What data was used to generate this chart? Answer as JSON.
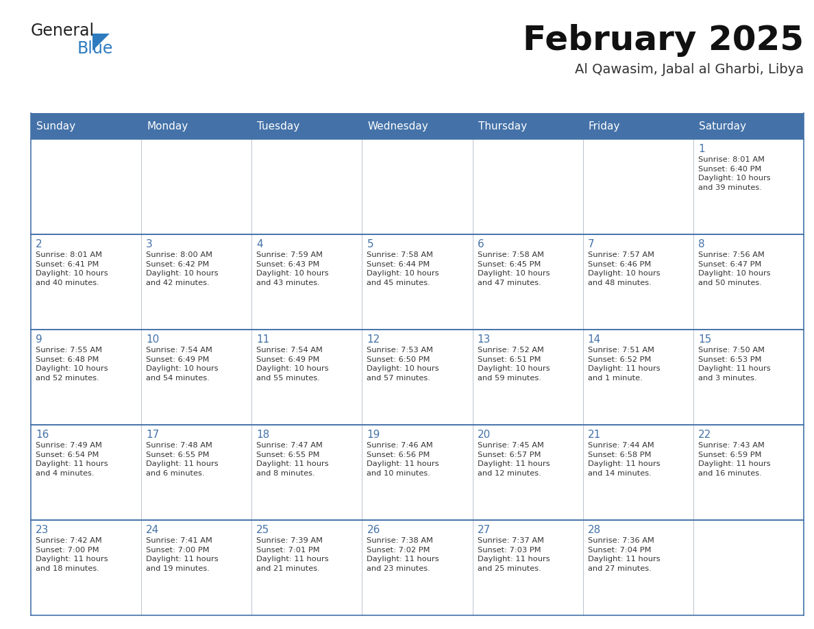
{
  "title": "February 2025",
  "subtitle": "Al Qawasim, Jabal al Gharbi, Libya",
  "header_bg_color": "#4472a8",
  "header_text_color": "#ffffff",
  "cell_bg_color": "#f2f2f2",
  "cell_border_color": "#4472a8",
  "row_border_color": "#4472a8",
  "day_number_color": "#4472a8",
  "text_color": "#333333",
  "white_bg": "#ffffff",
  "days_of_week": [
    "Sunday",
    "Monday",
    "Tuesday",
    "Wednesday",
    "Thursday",
    "Friday",
    "Saturday"
  ],
  "weeks": [
    [
      {
        "day": null,
        "info": null
      },
      {
        "day": null,
        "info": null
      },
      {
        "day": null,
        "info": null
      },
      {
        "day": null,
        "info": null
      },
      {
        "day": null,
        "info": null
      },
      {
        "day": null,
        "info": null
      },
      {
        "day": "1",
        "info": "Sunrise: 8:01 AM\nSunset: 6:40 PM\nDaylight: 10 hours\nand 39 minutes."
      }
    ],
    [
      {
        "day": "2",
        "info": "Sunrise: 8:01 AM\nSunset: 6:41 PM\nDaylight: 10 hours\nand 40 minutes."
      },
      {
        "day": "3",
        "info": "Sunrise: 8:00 AM\nSunset: 6:42 PM\nDaylight: 10 hours\nand 42 minutes."
      },
      {
        "day": "4",
        "info": "Sunrise: 7:59 AM\nSunset: 6:43 PM\nDaylight: 10 hours\nand 43 minutes."
      },
      {
        "day": "5",
        "info": "Sunrise: 7:58 AM\nSunset: 6:44 PM\nDaylight: 10 hours\nand 45 minutes."
      },
      {
        "day": "6",
        "info": "Sunrise: 7:58 AM\nSunset: 6:45 PM\nDaylight: 10 hours\nand 47 minutes."
      },
      {
        "day": "7",
        "info": "Sunrise: 7:57 AM\nSunset: 6:46 PM\nDaylight: 10 hours\nand 48 minutes."
      },
      {
        "day": "8",
        "info": "Sunrise: 7:56 AM\nSunset: 6:47 PM\nDaylight: 10 hours\nand 50 minutes."
      }
    ],
    [
      {
        "day": "9",
        "info": "Sunrise: 7:55 AM\nSunset: 6:48 PM\nDaylight: 10 hours\nand 52 minutes."
      },
      {
        "day": "10",
        "info": "Sunrise: 7:54 AM\nSunset: 6:49 PM\nDaylight: 10 hours\nand 54 minutes."
      },
      {
        "day": "11",
        "info": "Sunrise: 7:54 AM\nSunset: 6:49 PM\nDaylight: 10 hours\nand 55 minutes."
      },
      {
        "day": "12",
        "info": "Sunrise: 7:53 AM\nSunset: 6:50 PM\nDaylight: 10 hours\nand 57 minutes."
      },
      {
        "day": "13",
        "info": "Sunrise: 7:52 AM\nSunset: 6:51 PM\nDaylight: 10 hours\nand 59 minutes."
      },
      {
        "day": "14",
        "info": "Sunrise: 7:51 AM\nSunset: 6:52 PM\nDaylight: 11 hours\nand 1 minute."
      },
      {
        "day": "15",
        "info": "Sunrise: 7:50 AM\nSunset: 6:53 PM\nDaylight: 11 hours\nand 3 minutes."
      }
    ],
    [
      {
        "day": "16",
        "info": "Sunrise: 7:49 AM\nSunset: 6:54 PM\nDaylight: 11 hours\nand 4 minutes."
      },
      {
        "day": "17",
        "info": "Sunrise: 7:48 AM\nSunset: 6:55 PM\nDaylight: 11 hours\nand 6 minutes."
      },
      {
        "day": "18",
        "info": "Sunrise: 7:47 AM\nSunset: 6:55 PM\nDaylight: 11 hours\nand 8 minutes."
      },
      {
        "day": "19",
        "info": "Sunrise: 7:46 AM\nSunset: 6:56 PM\nDaylight: 11 hours\nand 10 minutes."
      },
      {
        "day": "20",
        "info": "Sunrise: 7:45 AM\nSunset: 6:57 PM\nDaylight: 11 hours\nand 12 minutes."
      },
      {
        "day": "21",
        "info": "Sunrise: 7:44 AM\nSunset: 6:58 PM\nDaylight: 11 hours\nand 14 minutes."
      },
      {
        "day": "22",
        "info": "Sunrise: 7:43 AM\nSunset: 6:59 PM\nDaylight: 11 hours\nand 16 minutes."
      }
    ],
    [
      {
        "day": "23",
        "info": "Sunrise: 7:42 AM\nSunset: 7:00 PM\nDaylight: 11 hours\nand 18 minutes."
      },
      {
        "day": "24",
        "info": "Sunrise: 7:41 AM\nSunset: 7:00 PM\nDaylight: 11 hours\nand 19 minutes."
      },
      {
        "day": "25",
        "info": "Sunrise: 7:39 AM\nSunset: 7:01 PM\nDaylight: 11 hours\nand 21 minutes."
      },
      {
        "day": "26",
        "info": "Sunrise: 7:38 AM\nSunset: 7:02 PM\nDaylight: 11 hours\nand 23 minutes."
      },
      {
        "day": "27",
        "info": "Sunrise: 7:37 AM\nSunset: 7:03 PM\nDaylight: 11 hours\nand 25 minutes."
      },
      {
        "day": "28",
        "info": "Sunrise: 7:36 AM\nSunset: 7:04 PM\nDaylight: 11 hours\nand 27 minutes."
      },
      {
        "day": null,
        "info": null
      }
    ]
  ],
  "logo_general_color": "#222222",
  "logo_blue_color": "#2e7bbf",
  "background_color": "#ffffff"
}
